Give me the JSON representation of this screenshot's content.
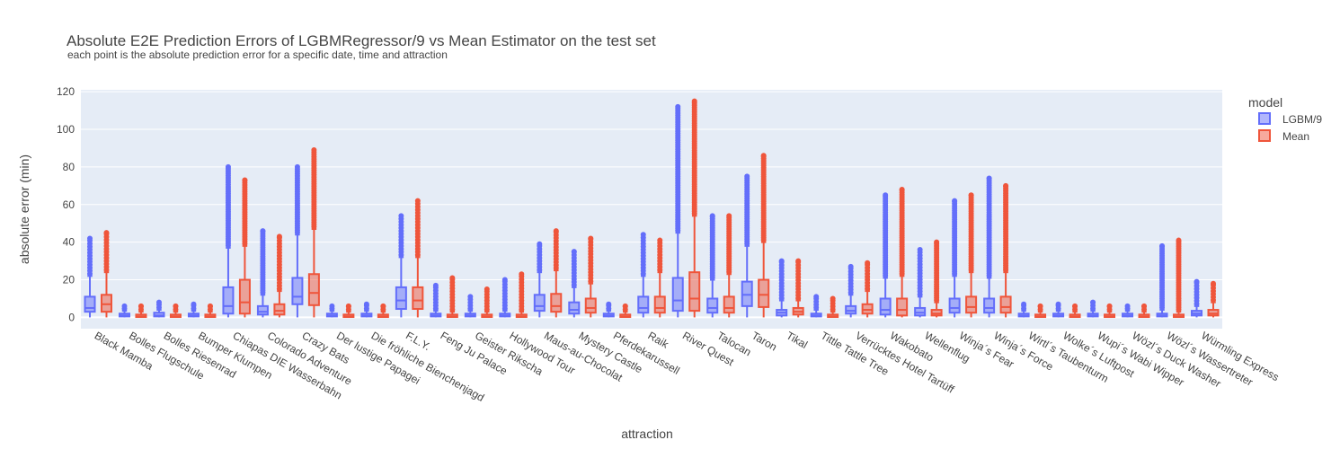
{
  "chart_data": {
    "type": "box",
    "title": "Absolute E2E Prediction Errors of LGBMRegressor/9 vs Mean Estimator on the test set",
    "subtitle": "each point is the absolute prediction error for a specific date, time and attraction",
    "xlabel": "attraction",
    "ylabel": "absolute error (min)",
    "ylim": [
      -6,
      121
    ],
    "yticks": [
      0,
      20,
      40,
      60,
      80,
      100,
      120
    ],
    "legend": {
      "title": "model",
      "placement": "top-right"
    },
    "grid": true,
    "categories": [
      "Black Mamba",
      "Bolles Flugschule",
      "Bolles Riesenrad",
      "Bumper Klumpen",
      "Chiapas DIE Wasserbahn",
      "Colorado Adventure",
      "Crazy Bats",
      "Der lustige Papagei",
      "Die fröhliche Bienchenjagd",
      "F.L.Y.",
      "Feng Ju Palace",
      "Geister Rikscha",
      "Hollywood Tour",
      "Maus-au-Chocolat",
      "Mystery Castle",
      "Pferdekarussell",
      "Raik",
      "River Quest",
      "Talocan",
      "Taron",
      "Tikal",
      "Tittle Tattle Tree",
      "Verrücktes Hotel Tartüff",
      "Wakobato",
      "Wellenflug",
      "Winja´s Fear",
      "Winja´s Force",
      "Wirtl´s Taubenturm",
      "Wolke´s Luftpost",
      "Wupi´s Wabi Wipper",
      "Wözl´s Duck Washer",
      "Wözl´s Wassertreter",
      "Würmling Express"
    ],
    "series": [
      {
        "name": "LGBM/9",
        "color": "#636efa",
        "fill": "rgba(99,110,250,0.5)",
        "min": [
          0,
          0,
          0,
          0,
          0,
          0,
          0,
          0,
          0,
          0,
          0,
          0,
          0,
          0,
          0,
          0,
          0,
          0,
          0,
          0,
          0,
          0,
          0,
          0,
          0,
          0,
          0,
          0,
          0,
          0,
          0,
          0,
          0
        ],
        "q1": [
          3,
          0.5,
          0.5,
          0.5,
          2,
          1.5,
          7,
          0.5,
          0.5,
          4.5,
          0.5,
          0.5,
          0.5,
          3.5,
          2,
          0.5,
          2.5,
          3.5,
          2.5,
          6,
          1,
          0.5,
          2,
          1.5,
          1,
          2.5,
          2.5,
          0.5,
          0.5,
          0.5,
          0.5,
          0.5,
          1
        ],
        "median": [
          5,
          1,
          1,
          1,
          6,
          3,
          11,
          1,
          1,
          9,
          1,
          1,
          1,
          6,
          4,
          1,
          5,
          9,
          5,
          12,
          2.5,
          1,
          3.5,
          4,
          2.5,
          5,
          5,
          1,
          1,
          1,
          1,
          1,
          2
        ],
        "q3": [
          11,
          2,
          2.5,
          2,
          16,
          6,
          21,
          2,
          2,
          16,
          2,
          2,
          2,
          12,
          8,
          2,
          11,
          21,
          10,
          19,
          4,
          2,
          6,
          10,
          5,
          10,
          10,
          2,
          2,
          2,
          2,
          2,
          3.5
        ],
        "max": [
          22,
          3.5,
          4,
          3.5,
          37,
          12,
          44,
          3.5,
          3.5,
          32,
          3.5,
          3.5,
          3.5,
          24,
          16,
          3.5,
          22,
          45,
          20,
          38,
          9,
          4,
          12,
          21,
          11,
          22,
          21,
          3.5,
          3.5,
          3.5,
          3.5,
          4,
          6
        ],
        "outliers_top": [
          42,
          6,
          8,
          7,
          80,
          46,
          80,
          6,
          7,
          54,
          17,
          11,
          20,
          39,
          35,
          7,
          44,
          112,
          54,
          75,
          30,
          11,
          27,
          65,
          36,
          62,
          74,
          7,
          7,
          8,
          6,
          38,
          19
        ]
      },
      {
        "name": "Mean",
        "color": "#ef553b",
        "fill": "rgba(239,85,59,0.5)",
        "min": [
          0,
          0,
          0,
          0,
          0,
          0,
          0,
          0,
          0,
          0,
          0,
          0,
          0,
          0,
          0,
          0,
          0,
          0,
          0,
          0,
          0,
          0,
          0,
          0,
          0,
          0,
          0,
          0,
          0,
          0,
          0,
          0,
          0
        ],
        "q1": [
          3,
          0.2,
          0.2,
          0.2,
          2,
          1.5,
          6.5,
          0.2,
          0.2,
          4.5,
          0.2,
          0.2,
          0.2,
          3,
          2.5,
          0.2,
          2.5,
          3.5,
          2.5,
          5.5,
          1.5,
          0.2,
          2,
          1,
          1,
          2.5,
          2.5,
          0.2,
          0.2,
          0.2,
          0.2,
          0.2,
          1
        ],
        "median": [
          7,
          0.5,
          0.5,
          0.5,
          8,
          3.5,
          13,
          0.5,
          0.5,
          9,
          0.5,
          0.5,
          0.5,
          6,
          5,
          0.5,
          5,
          10,
          5,
          12,
          3,
          0.5,
          4,
          4,
          2,
          5.5,
          5.5,
          0.5,
          0.5,
          0.5,
          0.5,
          0.5,
          2
        ],
        "q3": [
          12,
          1.5,
          1.5,
          1.5,
          20,
          7,
          23,
          1.5,
          1.5,
          16,
          1.5,
          1.5,
          1.5,
          12.5,
          10,
          1.5,
          11,
          24,
          11,
          20,
          5,
          1.5,
          7,
          10,
          4,
          11,
          11,
          1.5,
          1.5,
          1.5,
          1.5,
          1.5,
          4
        ],
        "max": [
          24,
          3,
          3,
          3,
          38,
          14,
          47,
          3,
          3,
          32,
          3,
          3,
          3,
          25,
          18,
          3,
          24,
          54,
          23,
          40,
          9,
          3,
          14,
          22,
          8,
          24,
          24,
          3,
          3,
          3,
          3,
          3,
          8
        ],
        "outliers_top": [
          45,
          6,
          6,
          6,
          73,
          43,
          89,
          6,
          6,
          62,
          21,
          15,
          23,
          46,
          42,
          6,
          41,
          115,
          54,
          86,
          30,
          10,
          29,
          68,
          40,
          65,
          70,
          6,
          6,
          6,
          6,
          41,
          18
        ]
      }
    ]
  }
}
